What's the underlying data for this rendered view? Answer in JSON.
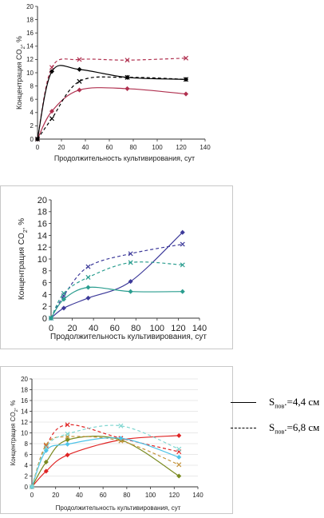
{
  "chart_data": [
    {
      "type": "line",
      "xlabel": "Продолжительность культивирования, сут",
      "ylabel": "Концентрация CO",
      "ylabel_sub": "2",
      "ylabel_suffix": ", %",
      "xlim": [
        0,
        140
      ],
      "ylim": [
        0,
        20
      ],
      "xticks": [
        0,
        20,
        40,
        60,
        80,
        100,
        120,
        140
      ],
      "yticks": [
        0,
        2,
        4,
        6,
        8,
        10,
        12,
        14,
        16,
        18,
        20
      ],
      "grid": false,
      "series": [
        {
          "color": "#b0304f",
          "dash": "none",
          "marker": "diamond",
          "x": [
            0,
            12,
            35,
            75,
            124
          ],
          "y": [
            0,
            4.2,
            7.4,
            7.6,
            6.8
          ]
        },
        {
          "color": "#b0304f",
          "dash": "4,3",
          "marker": "x",
          "x": [
            0,
            12,
            35,
            75,
            124
          ],
          "y": [
            0,
            10.8,
            12.0,
            11.9,
            12.2
          ]
        },
        {
          "color": "#000000",
          "dash": "none",
          "marker": "diamond",
          "x": [
            0,
            12,
            35,
            75,
            124
          ],
          "y": [
            0,
            10.2,
            10.5,
            9.3,
            9.0
          ]
        },
        {
          "color": "#000000",
          "dash": "4,3",
          "marker": "x",
          "x": [
            0,
            12,
            35,
            75,
            124
          ],
          "y": [
            0,
            3.1,
            8.7,
            9.3,
            9.0
          ]
        }
      ]
    },
    {
      "type": "line",
      "xlabel": "Продолжительность культивирования, сут",
      "ylabel": "Концентрация CO",
      "ylabel_sub": "2",
      "ylabel_suffix": ", %",
      "xlim": [
        0,
        140
      ],
      "ylim": [
        0,
        20
      ],
      "xticks": [
        0,
        20,
        40,
        60,
        80,
        100,
        120,
        140
      ],
      "yticks": [
        0,
        2,
        4,
        6,
        8,
        10,
        12,
        14,
        16,
        18,
        20
      ],
      "grid": false,
      "series": [
        {
          "color": "#3d3a9a",
          "dash": "none",
          "marker": "diamond",
          "x": [
            0,
            12,
            35,
            75,
            124
          ],
          "y": [
            0,
            1.7,
            3.4,
            6.2,
            14.5
          ]
        },
        {
          "color": "#3d3a9a",
          "dash": "4,3",
          "marker": "x",
          "x": [
            0,
            12,
            35,
            75,
            124
          ],
          "y": [
            0,
            3.8,
            8.7,
            10.9,
            12.5
          ]
        },
        {
          "color": "#2a9d8f",
          "dash": "none",
          "marker": "diamond",
          "x": [
            0,
            12,
            35,
            75,
            124
          ],
          "y": [
            0,
            3.2,
            5.2,
            4.5,
            4.5
          ]
        },
        {
          "color": "#2a9d8f",
          "dash": "4,3",
          "marker": "x",
          "x": [
            0,
            12,
            35,
            75,
            124
          ],
          "y": [
            0,
            4.2,
            6.9,
            9.4,
            9.0
          ]
        }
      ]
    },
    {
      "type": "line",
      "xlabel": "Продолжительность культивирования, сут",
      "ylabel": "Концентрация CO",
      "ylabel_sub": "2",
      "ylabel_suffix": ", %",
      "xlim": [
        0,
        140
      ],
      "ylim": [
        0,
        20
      ],
      "xticks": [
        0,
        20,
        40,
        60,
        80,
        100,
        120,
        140
      ],
      "yticks": [
        0,
        2,
        4,
        6,
        8,
        10,
        12,
        14,
        16,
        18,
        20
      ],
      "grid": true,
      "series": [
        {
          "color": "#e02424",
          "dash": "none",
          "marker": "diamond",
          "x": [
            0,
            12,
            30,
            75,
            124
          ],
          "y": [
            0,
            2.9,
            5.9,
            8.7,
            9.5
          ]
        },
        {
          "color": "#e02424",
          "dash": "4,3",
          "marker": "x",
          "x": [
            0,
            12,
            30,
            75,
            124
          ],
          "y": [
            0,
            7.6,
            11.5,
            9.0,
            6.5
          ]
        },
        {
          "color": "#7a8a20",
          "dash": "none",
          "marker": "diamond",
          "x": [
            0,
            12,
            30,
            75,
            124
          ],
          "y": [
            0,
            4.6,
            8.7,
            8.7,
            2.0
          ]
        },
        {
          "color": "#c4933a",
          "dash": "4,3",
          "marker": "x",
          "x": [
            0,
            12,
            30,
            75,
            124
          ],
          "y": [
            0,
            7.8,
            9.3,
            8.5,
            4.1
          ]
        },
        {
          "color": "#4fc3e8",
          "dash": "none",
          "marker": "diamond",
          "x": [
            0,
            12,
            30,
            75,
            124
          ],
          "y": [
            0,
            6.7,
            7.9,
            9.0,
            5.5
          ]
        },
        {
          "color": "#7fd6d0",
          "dash": "4,3",
          "marker": "x",
          "x": [
            0,
            12,
            30,
            75,
            124
          ],
          "y": [
            0,
            7.3,
            9.8,
            11.3,
            7.0
          ]
        }
      ]
    }
  ],
  "legend": {
    "solid_label_main": "S",
    "solid_label_sub": "пов",
    "solid_label_rest": ".=4,4 см",
    "dashed_label_main": "S",
    "dashed_label_sub": "пов",
    "dashed_label_rest": ".=6,8 см"
  }
}
